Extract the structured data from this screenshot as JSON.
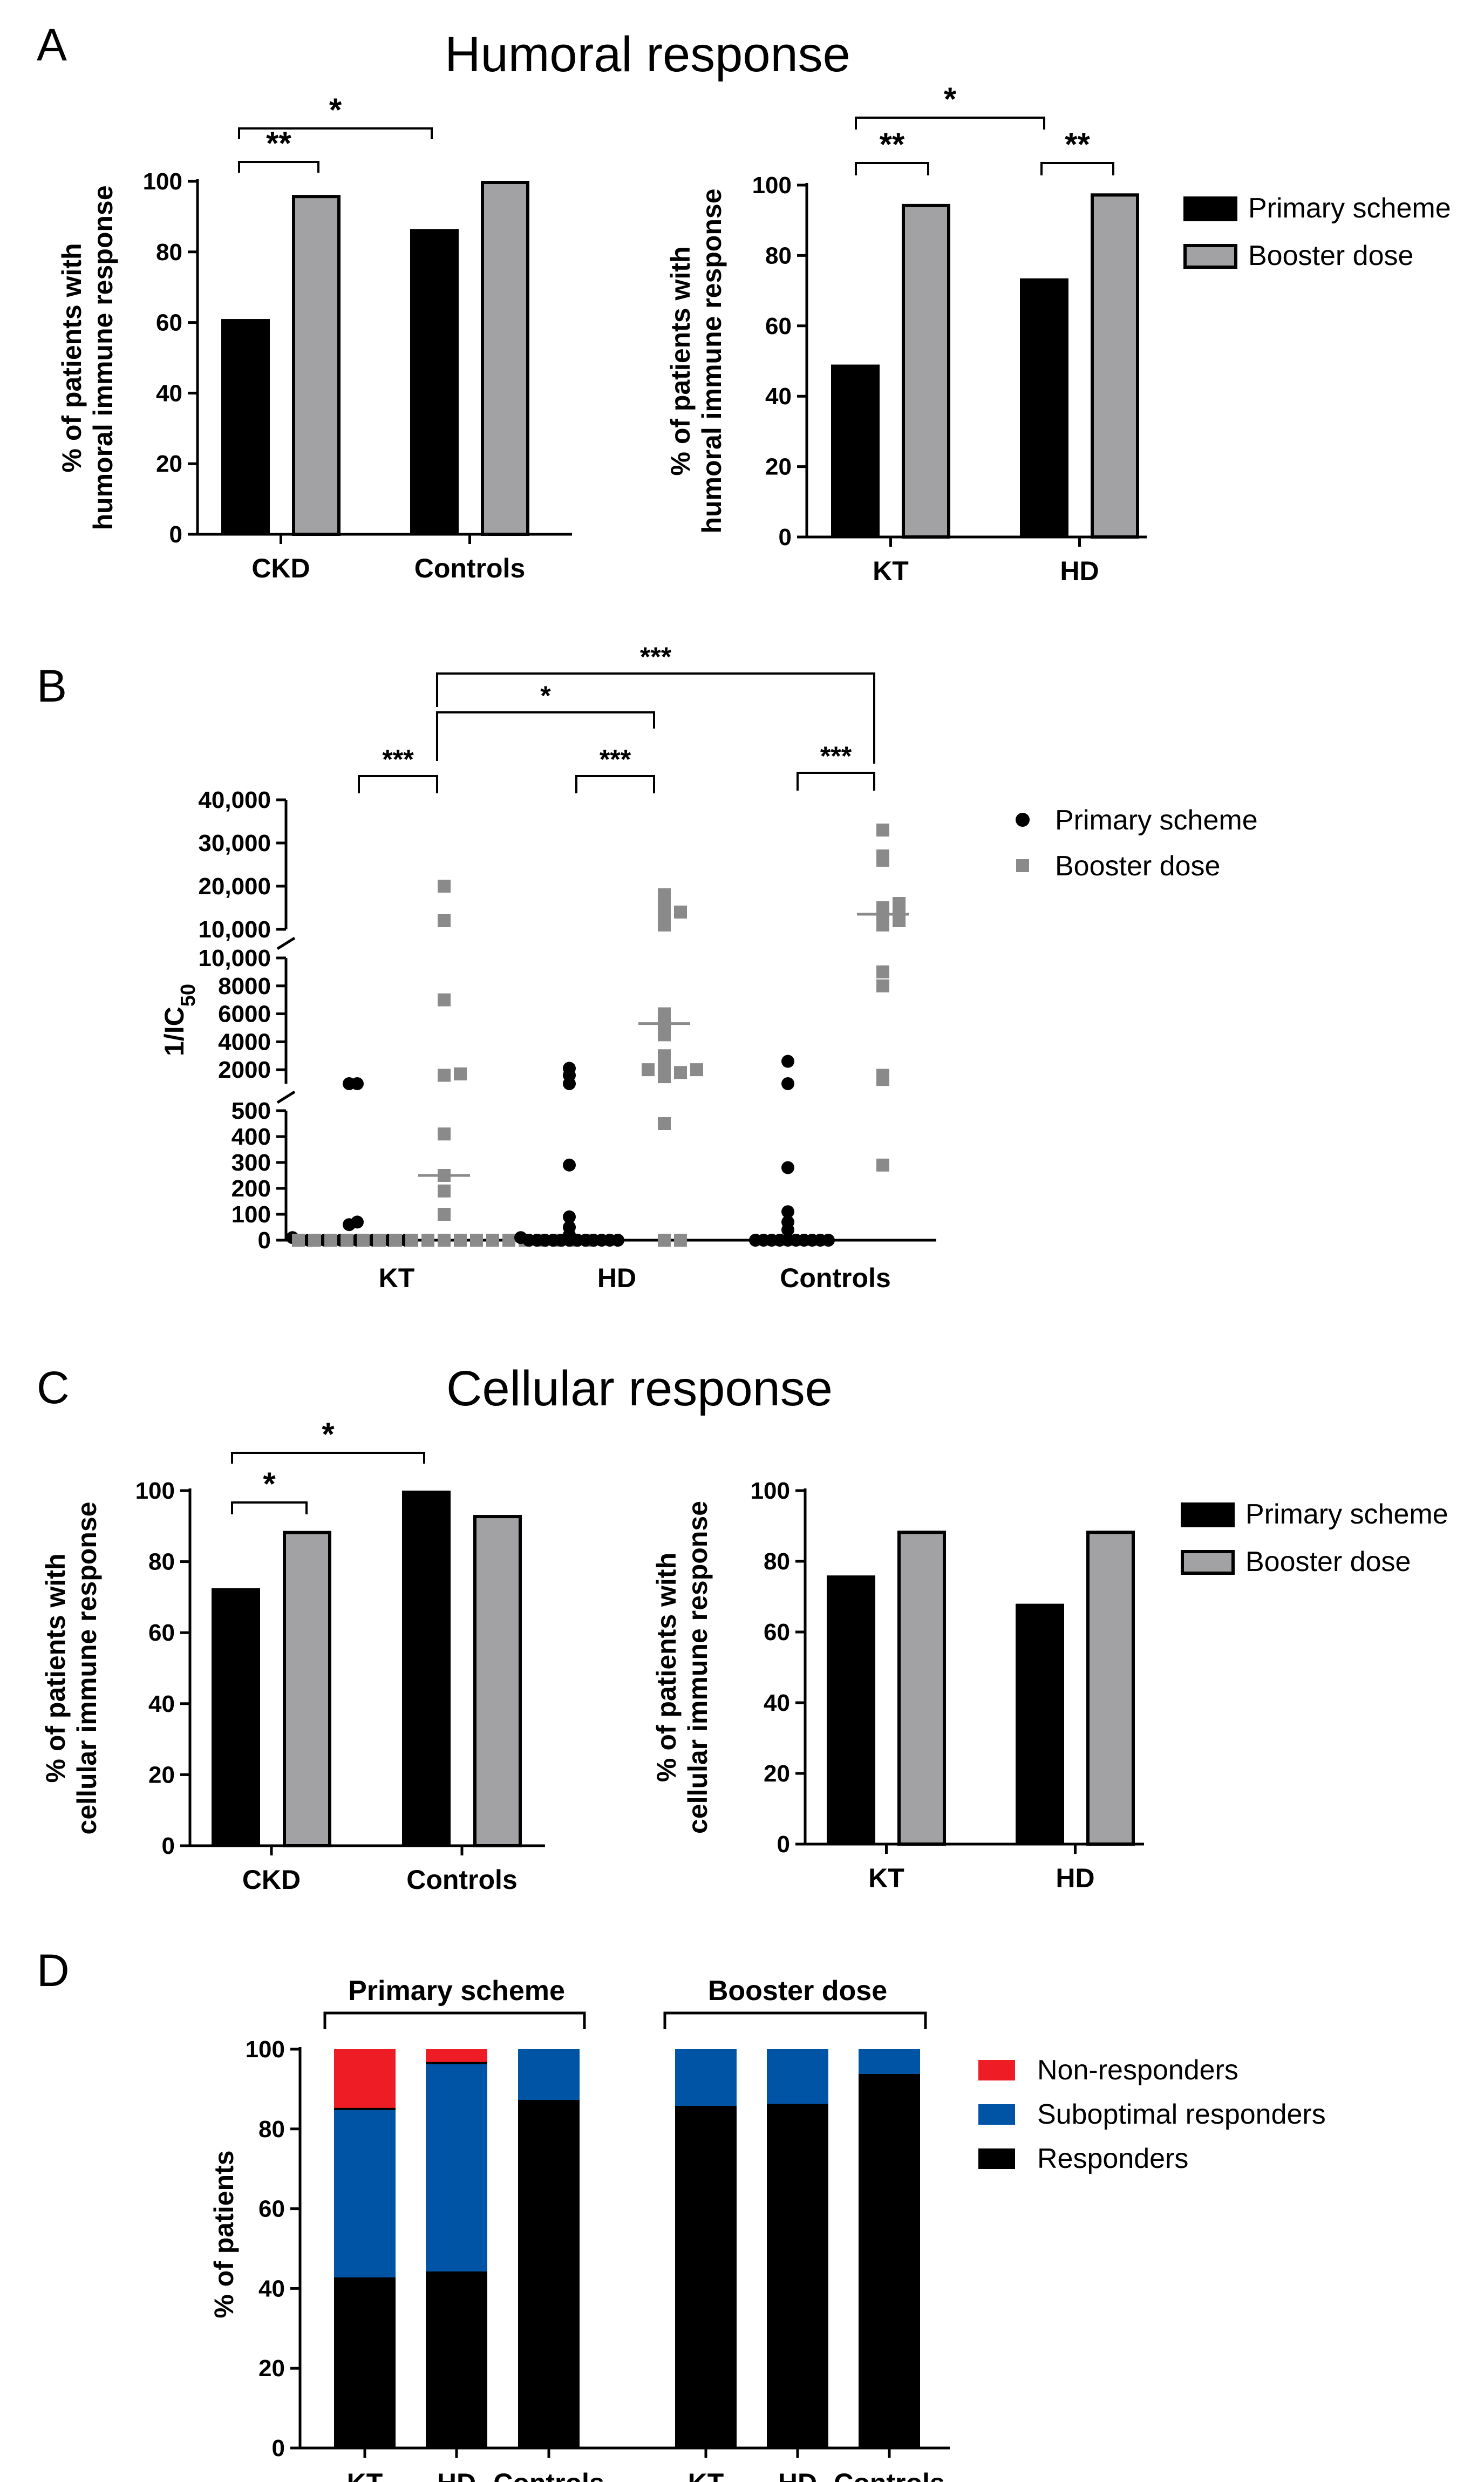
{
  "colors": {
    "primary": "#000000",
    "booster": "#a2a2a5",
    "scatter_booster": "#8a8a8a",
    "non_responders": "#ee1c25",
    "suboptimal": "#0054a6",
    "responders": "#000000"
  },
  "panels": {
    "A": {
      "letter": "A",
      "title": "Humoral response"
    },
    "B": {
      "letter": "B"
    },
    "C": {
      "letter": "C",
      "title": "Cellular response"
    },
    "D": {
      "letter": "D"
    }
  },
  "chart_data": [
    {
      "id": "A-left",
      "type": "bar",
      "ylabel_line1": "% of patients with",
      "ylabel_line2": "humoral immune response",
      "ylim": [
        0,
        100
      ],
      "yticks": [
        "0",
        "20",
        "40",
        "60",
        "80",
        "100"
      ],
      "categories": [
        "CKD",
        "Controls"
      ],
      "series": [
        {
          "name": "Primary scheme",
          "values": [
            61,
            86.5
          ]
        },
        {
          "name": "Booster dose",
          "values": [
            96,
            100
          ]
        }
      ],
      "significance": [
        {
          "label": "**",
          "between": "CKD primary vs booster"
        },
        {
          "label": "*",
          "between": "CKD vs Controls (primary)"
        }
      ]
    },
    {
      "id": "A-right",
      "type": "bar",
      "ylabel_line1": "% of patients with",
      "ylabel_line2": "humoral immune response",
      "ylim": [
        0,
        100
      ],
      "yticks": [
        "0",
        "20",
        "40",
        "60",
        "80",
        "100"
      ],
      "categories": [
        "KT",
        "HD"
      ],
      "series": [
        {
          "name": "Primary scheme",
          "values": [
            49,
            73.5
          ]
        },
        {
          "name": "Booster dose",
          "values": [
            94.5,
            97.5
          ]
        }
      ],
      "legend": [
        "Primary scheme",
        "Booster dose"
      ],
      "significance": [
        {
          "label": "**",
          "between": "KT primary vs booster"
        },
        {
          "label": "**",
          "between": "HD primary vs booster"
        },
        {
          "label": "*",
          "between": "KT vs HD (primary)"
        }
      ]
    },
    {
      "id": "B",
      "type": "scatter",
      "ylabel_main": "1/IC",
      "ylabel_sub": "50",
      "categories": [
        "KT",
        "HD",
        "Controls"
      ],
      "yticks_low": [
        "0",
        "100",
        "200",
        "300",
        "400",
        "500"
      ],
      "yticks_mid": [
        "2000",
        "4000",
        "6000",
        "8000",
        "10,000"
      ],
      "yticks_high": [
        "10,000",
        "20,000",
        "30,000",
        "40,000"
      ],
      "legend": [
        "Primary scheme",
        "Booster dose"
      ],
      "series": [
        {
          "name": "Primary scheme",
          "points": {
            "KT": [
              0,
              0,
              0,
              0,
              0,
              0,
              0,
              0,
              0,
              0,
              0,
              0,
              0,
              0,
              10,
              60,
              70,
              1000,
              1000
            ],
            "HD": [
              0,
              0,
              0,
              0,
              0,
              0,
              0,
              0,
              0,
              0,
              0,
              0,
              10,
              20,
              50,
              90,
              290,
              1000,
              1600,
              2100
            ],
            "Controls": [
              0,
              0,
              0,
              0,
              0,
              0,
              0,
              0,
              0,
              0,
              40,
              70,
              110,
              280,
              1000,
              2600
            ]
          }
        },
        {
          "name": "Booster dose",
          "points": {
            "KT": [
              0,
              0,
              0,
              0,
              0,
              0,
              0,
              0,
              0,
              0,
              0,
              0,
              0,
              0,
              0,
              0,
              0,
              0,
              0,
              100,
              190,
              250,
              410,
              1600,
              1700,
              7000,
              12000,
              20000
            ],
            "HD": [
              0,
              0,
              450,
              1500,
              1600,
              1800,
              2000,
              2000,
              2100,
              3000,
              4500,
              5000,
              5600,
              6000,
              11000,
              13000,
              14000,
              16000,
              17000,
              18000
            ],
            "Controls": [
              290,
              1300,
              1600,
              8000,
              9000,
              11000,
              12000,
              13000,
              14000,
              15000,
              16000,
              26000,
              27000,
              33000
            ]
          },
          "medians": {
            "KT": 250,
            "HD": 5300,
            "Controls": 13500
          }
        }
      ],
      "significance": [
        {
          "label": "***",
          "between": "KT primary vs booster"
        },
        {
          "label": "***",
          "between": "HD primary vs booster"
        },
        {
          "label": "***",
          "between": "Controls primary vs booster"
        },
        {
          "label": "*",
          "between": "KT booster vs HD booster"
        },
        {
          "label": "***",
          "between": "KT booster vs Controls booster"
        }
      ]
    },
    {
      "id": "C-left",
      "type": "bar",
      "ylabel_line1": "% of patients with",
      "ylabel_line2": "cellular immune response",
      "ylim": [
        0,
        100
      ],
      "yticks": [
        "0",
        "20",
        "40",
        "60",
        "80",
        "100"
      ],
      "categories": [
        "CKD",
        "Controls"
      ],
      "series": [
        {
          "name": "Primary scheme",
          "values": [
            72.5,
            100
          ]
        },
        {
          "name": "Booster dose",
          "values": [
            88.5,
            93
          ]
        }
      ],
      "significance": [
        {
          "label": "*",
          "between": "CKD primary vs booster"
        },
        {
          "label": "*",
          "between": "CKD vs Controls (primary)"
        }
      ]
    },
    {
      "id": "C-right",
      "type": "bar",
      "ylabel_line1": "% of patients with",
      "ylabel_line2": "cellular immune response",
      "ylim": [
        0,
        100
      ],
      "yticks": [
        "0",
        "20",
        "40",
        "60",
        "80",
        "100"
      ],
      "categories": [
        "KT",
        "HD"
      ],
      "series": [
        {
          "name": "Primary scheme",
          "values": [
            76,
            68
          ]
        },
        {
          "name": "Booster dose",
          "values": [
            88.5,
            88.5
          ]
        }
      ],
      "legend": [
        "Primary scheme",
        "Booster dose"
      ]
    },
    {
      "id": "D",
      "type": "bar",
      "stacked": true,
      "ylabel": "% of patients",
      "ylim": [
        0,
        100
      ],
      "yticks": [
        "0",
        "20",
        "40",
        "60",
        "80",
        "100"
      ],
      "groups": [
        "Primary scheme",
        "Booster dose"
      ],
      "categories": [
        "KT",
        "HD",
        "Controls",
        "KT",
        "HD",
        "Controls"
      ],
      "series": [
        {
          "name": "Responders",
          "values": [
            42.5,
            44,
            87,
            85.5,
            86,
            93.5
          ]
        },
        {
          "name": "Suboptimal responders",
          "values": [
            42.5,
            52.5,
            13,
            14.5,
            14,
            6.5
          ]
        },
        {
          "name": "Non-responders",
          "values": [
            15,
            3.5,
            0,
            0,
            0,
            0
          ]
        }
      ],
      "legend": [
        "Non-responders",
        "Suboptimal responders",
        "Responders"
      ]
    }
  ]
}
